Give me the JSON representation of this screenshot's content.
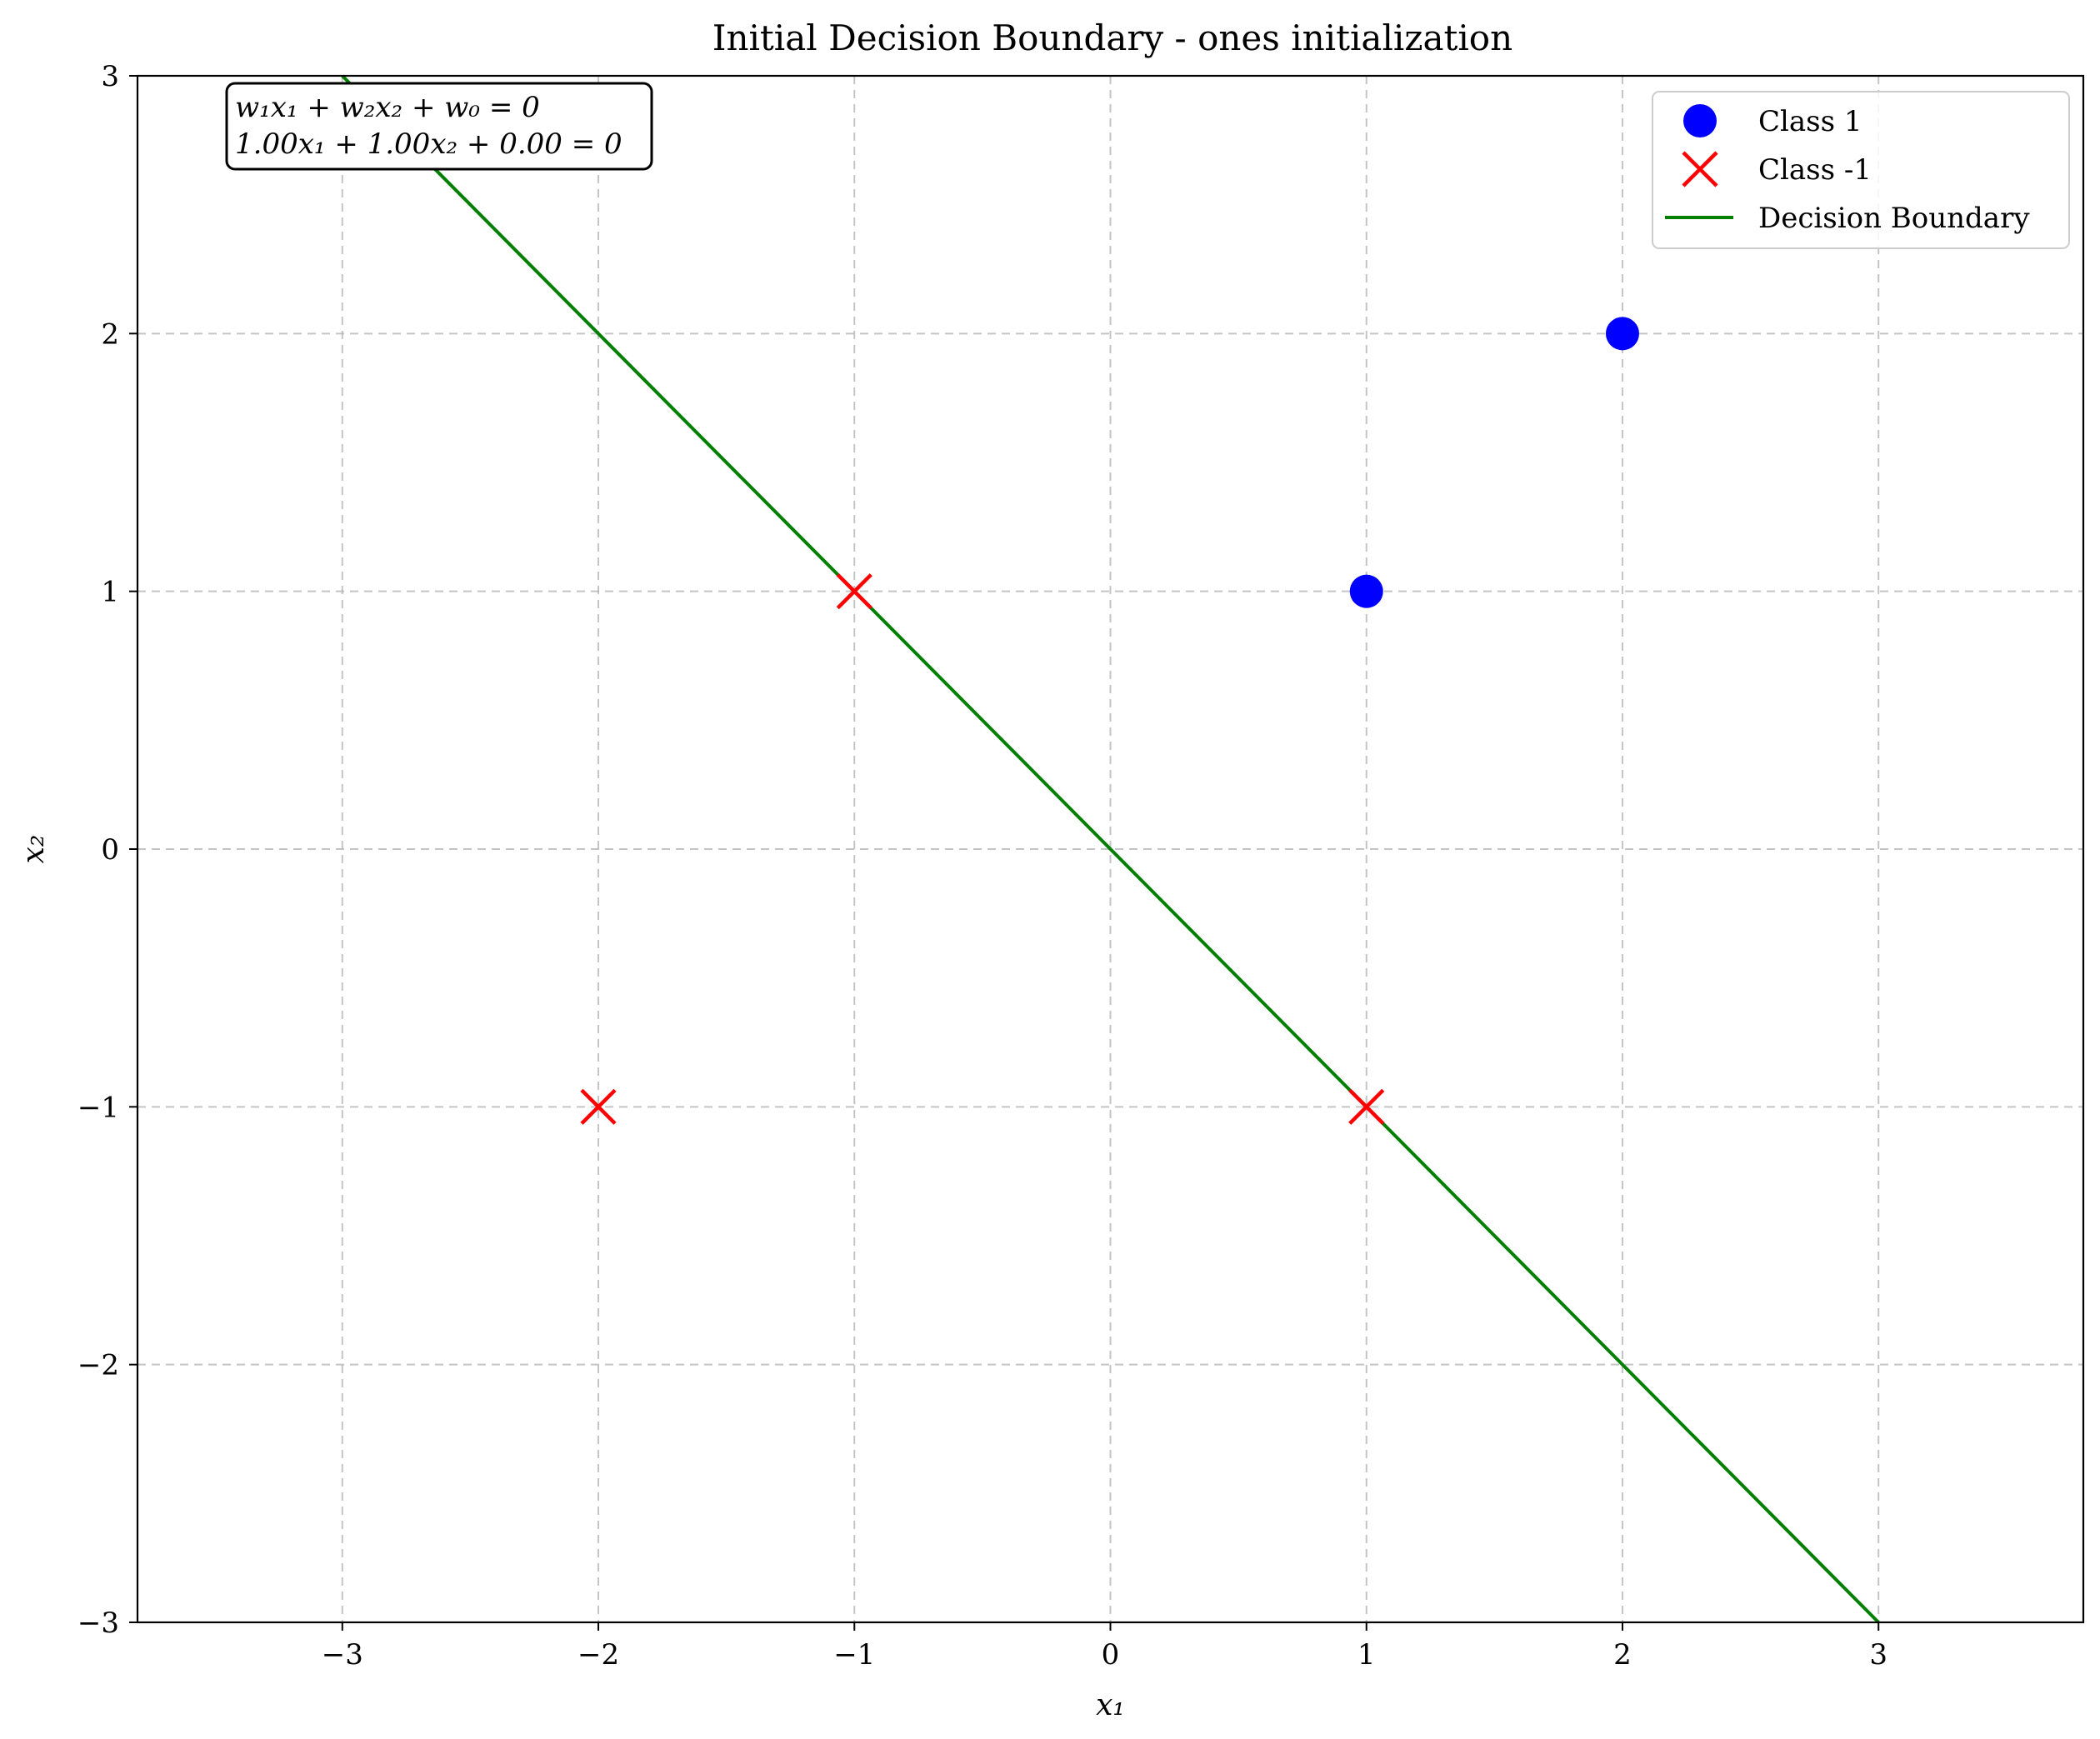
{
  "chart_data": {
    "type": "scatter",
    "title": "Initial Decision Boundary - ones initialization",
    "xlabel": "x₁",
    "ylabel": "x₂",
    "xlim": [
      -3.8,
      3.8
    ],
    "ylim": [
      -3,
      3
    ],
    "xticks": [
      -3,
      -2,
      -1,
      0,
      1,
      2,
      3
    ],
    "xtick_labels": [
      "−3",
      "−2",
      "−1",
      "0",
      "1",
      "2",
      "3"
    ],
    "yticks": [
      -3,
      -2,
      -1,
      0,
      1,
      2,
      3
    ],
    "ytick_labels": [
      "−3",
      "−2",
      "−1",
      "0",
      "1",
      "2",
      "3"
    ],
    "grid": true,
    "legend_position": "top-right",
    "series": [
      {
        "name": "Class 1",
        "marker": "circle",
        "color": "#0000ff",
        "points": [
          {
            "x": 1,
            "y": 1
          },
          {
            "x": 2,
            "y": 2
          }
        ]
      },
      {
        "name": "Class -1",
        "marker": "x",
        "color": "#ff0000",
        "points": [
          {
            "x": -1,
            "y": 1
          },
          {
            "x": -2,
            "y": -1
          },
          {
            "x": 1,
            "y": -1
          }
        ]
      },
      {
        "name": "Decision Boundary",
        "marker": "line",
        "color": "#007f00",
        "points": [
          {
            "x": -3,
            "y": 3
          },
          {
            "x": 3,
            "y": -3
          }
        ]
      }
    ],
    "annotation": {
      "line1": "w₁x₁ + w₂x₂ + w₀ = 0",
      "line2": "1.00x₁ + 1.00x₂ + 0.00 = 0",
      "position": "top-left"
    }
  }
}
